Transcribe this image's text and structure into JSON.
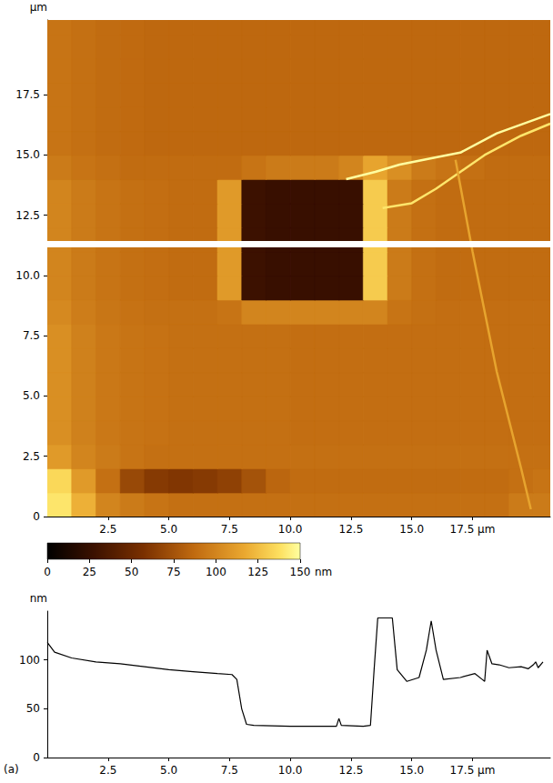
{
  "chart_data": [
    {
      "type": "heatmap",
      "x_edges": [
        0,
        1,
        2,
        3,
        4,
        5,
        6,
        7,
        8,
        9,
        10,
        11,
        12,
        13,
        14,
        15,
        16,
        17,
        18,
        19,
        20,
        20.7
      ],
      "y_edges": [
        0,
        1,
        2,
        3,
        4,
        5,
        6,
        7,
        8,
        9,
        10,
        11,
        12,
        13,
        14,
        15,
        16,
        17,
        18,
        19,
        20,
        20.6
      ],
      "z": [
        [
          140,
          120,
          100,
          95,
          92,
          90,
          90,
          90,
          90,
          90,
          90,
          90,
          90,
          90,
          90,
          90,
          90,
          90,
          90,
          95,
          95
        ],
        [
          135,
          110,
          90,
          70,
          62,
          60,
          62,
          66,
          75,
          85,
          88,
          88,
          88,
          88,
          88,
          88,
          88,
          88,
          88,
          90,
          92
        ],
        [
          110,
          100,
          95,
          92,
          90,
          90,
          90,
          90,
          90,
          90,
          90,
          90,
          90,
          90,
          90,
          90,
          90,
          90,
          90,
          90,
          90
        ],
        [
          105,
          98,
          94,
          92,
          91,
          90,
          90,
          90,
          90,
          90,
          89,
          89,
          89,
          89,
          89,
          89,
          89,
          89,
          89,
          89,
          89
        ],
        [
          105,
          98,
          94,
          92,
          91,
          90,
          90,
          90,
          90,
          90,
          89,
          89,
          89,
          89,
          89,
          89,
          89,
          89,
          89,
          89,
          89
        ],
        [
          105,
          98,
          94,
          92,
          91,
          90,
          90,
          90,
          90,
          90,
          89,
          89,
          89,
          89,
          89,
          89,
          89,
          89,
          89,
          89,
          89
        ],
        [
          105,
          98,
          94,
          92,
          91,
          90,
          90,
          90,
          90,
          90,
          89,
          89,
          89,
          89,
          89,
          89,
          89,
          89,
          89,
          89,
          89
        ],
        [
          105,
          98,
          94,
          92,
          91,
          90,
          90,
          90,
          90,
          90,
          89,
          89,
          89,
          89,
          89,
          89,
          89,
          89,
          89,
          89,
          89
        ],
        [
          102,
          96,
          93,
          91,
          90,
          90,
          90,
          92,
          100,
          100,
          100,
          100,
          100,
          100,
          92,
          90,
          89,
          89,
          89,
          89,
          89
        ],
        [
          100,
          95,
          92,
          90,
          89,
          88,
          88,
          110,
          28,
          26,
          26,
          26,
          26,
          130,
          95,
          90,
          88,
          88,
          88,
          88,
          88
        ],
        [
          100,
          95,
          92,
          90,
          89,
          88,
          88,
          110,
          28,
          26,
          26,
          26,
          26,
          130,
          95,
          90,
          88,
          88,
          88,
          88,
          88
        ],
        [
          100,
          95,
          92,
          90,
          89,
          88,
          88,
          110,
          28,
          26,
          26,
          26,
          26,
          130,
          95,
          90,
          88,
          88,
          88,
          88,
          88
        ],
        [
          100,
          95,
          92,
          90,
          89,
          88,
          88,
          110,
          28,
          26,
          26,
          26,
          26,
          130,
          95,
          90,
          88,
          88,
          88,
          88,
          88
        ],
        [
          100,
          95,
          92,
          90,
          89,
          88,
          88,
          110,
          28,
          26,
          26,
          26,
          26,
          130,
          95,
          90,
          88,
          88,
          88,
          88,
          88
        ],
        [
          95,
          92,
          90,
          88,
          88,
          88,
          88,
          88,
          92,
          95,
          95,
          95,
          100,
          115,
          105,
          95,
          92,
          90,
          88,
          88,
          88
        ],
        [
          92,
          90,
          88,
          87,
          86,
          86,
          86,
          86,
          86,
          86,
          86,
          86,
          86,
          86,
          86,
          86,
          86,
          86,
          86,
          86,
          86
        ],
        [
          92,
          90,
          88,
          87,
          86,
          86,
          86,
          86,
          86,
          86,
          86,
          86,
          86,
          86,
          86,
          86,
          86,
          86,
          86,
          86,
          86
        ],
        [
          92,
          90,
          88,
          87,
          86,
          86,
          86,
          86,
          86,
          86,
          86,
          86,
          86,
          86,
          86,
          86,
          86,
          86,
          86,
          86,
          86
        ],
        [
          92,
          90,
          88,
          87,
          86,
          86,
          86,
          86,
          86,
          86,
          86,
          86,
          86,
          86,
          86,
          86,
          86,
          86,
          86,
          86,
          86
        ],
        [
          92,
          90,
          88,
          87,
          86,
          86,
          86,
          86,
          86,
          86,
          86,
          86,
          86,
          86,
          86,
          86,
          86,
          86,
          86,
          86,
          86
        ],
        [
          92,
          90,
          88,
          87,
          86,
          86,
          86,
          86,
          86,
          86,
          86,
          86,
          86,
          86,
          86,
          86,
          86,
          86,
          86,
          86,
          86
        ]
      ],
      "ridges": [
        {
          "height": 150,
          "points": [
            [
              12.3,
              14.0
            ],
            [
              13.5,
              14.3
            ],
            [
              14.5,
              14.6
            ],
            [
              16,
              14.9
            ],
            [
              17,
              15.1
            ],
            [
              18.5,
              15.9
            ],
            [
              20.7,
              16.7
            ]
          ]
        },
        {
          "height": 140,
          "points": [
            [
              13.8,
              12.8
            ],
            [
              15,
              13.0
            ],
            [
              16,
              13.6
            ],
            [
              17,
              14.3
            ],
            [
              18,
              15.0
            ],
            [
              19.5,
              15.8
            ],
            [
              20.7,
              16.3
            ]
          ]
        },
        {
          "height": 115,
          "points": [
            [
              16.8,
              14.8
            ],
            [
              17.5,
              11
            ],
            [
              18.5,
              6
            ],
            [
              19.5,
              2
            ],
            [
              19.9,
              0.3
            ]
          ]
        }
      ],
      "scan_line_y": 11.3,
      "xlim": [
        0,
        20.7
      ],
      "ylim": [
        0,
        20.6
      ],
      "xticks": [
        2.5,
        {
          "value": 5,
          "label": "5.0"
        },
        7.5,
        {
          "value": 10,
          "label": "10.0"
        },
        12.5,
        {
          "value": 15,
          "label": "15.0"
        },
        {
          "value": 17.5,
          "label": "17.5 µm"
        }
      ],
      "yticks": [
        0,
        2.5,
        {
          "value": 5,
          "label": "5.0"
        },
        7.5,
        {
          "value": 10,
          "label": "10.0"
        },
        12.5,
        {
          "value": 15,
          "label": "15.0"
        },
        17.5
      ],
      "ylabel": "µm",
      "colorbar": {
        "range": [
          0,
          150
        ],
        "ticks": [
          0,
          25,
          50,
          75,
          100,
          125,
          150
        ],
        "label": "nm"
      }
    },
    {
      "type": "line",
      "x": [
        0,
        0.3,
        1,
        2,
        3,
        4,
        5,
        6,
        7,
        7.6,
        7.8,
        8.0,
        8.2,
        8.5,
        10,
        11.9,
        12.0,
        12.1,
        13.0,
        13.3,
        13.45,
        13.6,
        14.2,
        14.4,
        14.8,
        15.3,
        15.6,
        15.8,
        16.0,
        16.3,
        17.0,
        17.6,
        17.9,
        18.0,
        18.1,
        18.3,
        18.6,
        19.0,
        19.5,
        19.8,
        20.0,
        20.1,
        20.2,
        20.4
      ],
      "values": [
        118,
        108,
        102,
        98,
        96,
        93,
        90,
        88,
        86,
        85,
        80,
        50,
        34,
        33,
        32,
        32,
        40,
        33,
        32,
        33,
        90,
        143,
        143,
        90,
        78,
        82,
        110,
        140,
        110,
        80,
        82,
        86,
        80,
        78,
        110,
        96,
        95,
        92,
        93,
        91,
        95,
        98,
        92,
        98
      ],
      "color": "#000000",
      "xlim": [
        0,
        20.7
      ],
      "ylim": [
        0,
        150
      ],
      "xticks": [
        2.5,
        {
          "value": 5,
          "label": "5.0"
        },
        7.5,
        {
          "value": 10,
          "label": "10.0"
        },
        12.5,
        {
          "value": 15,
          "label": "15.0"
        },
        {
          "value": 17.5,
          "label": "17.5 µm"
        }
      ],
      "yticks": [
        0,
        50,
        100
      ],
      "ylabel": "nm"
    }
  ],
  "panel_label": "(a)"
}
